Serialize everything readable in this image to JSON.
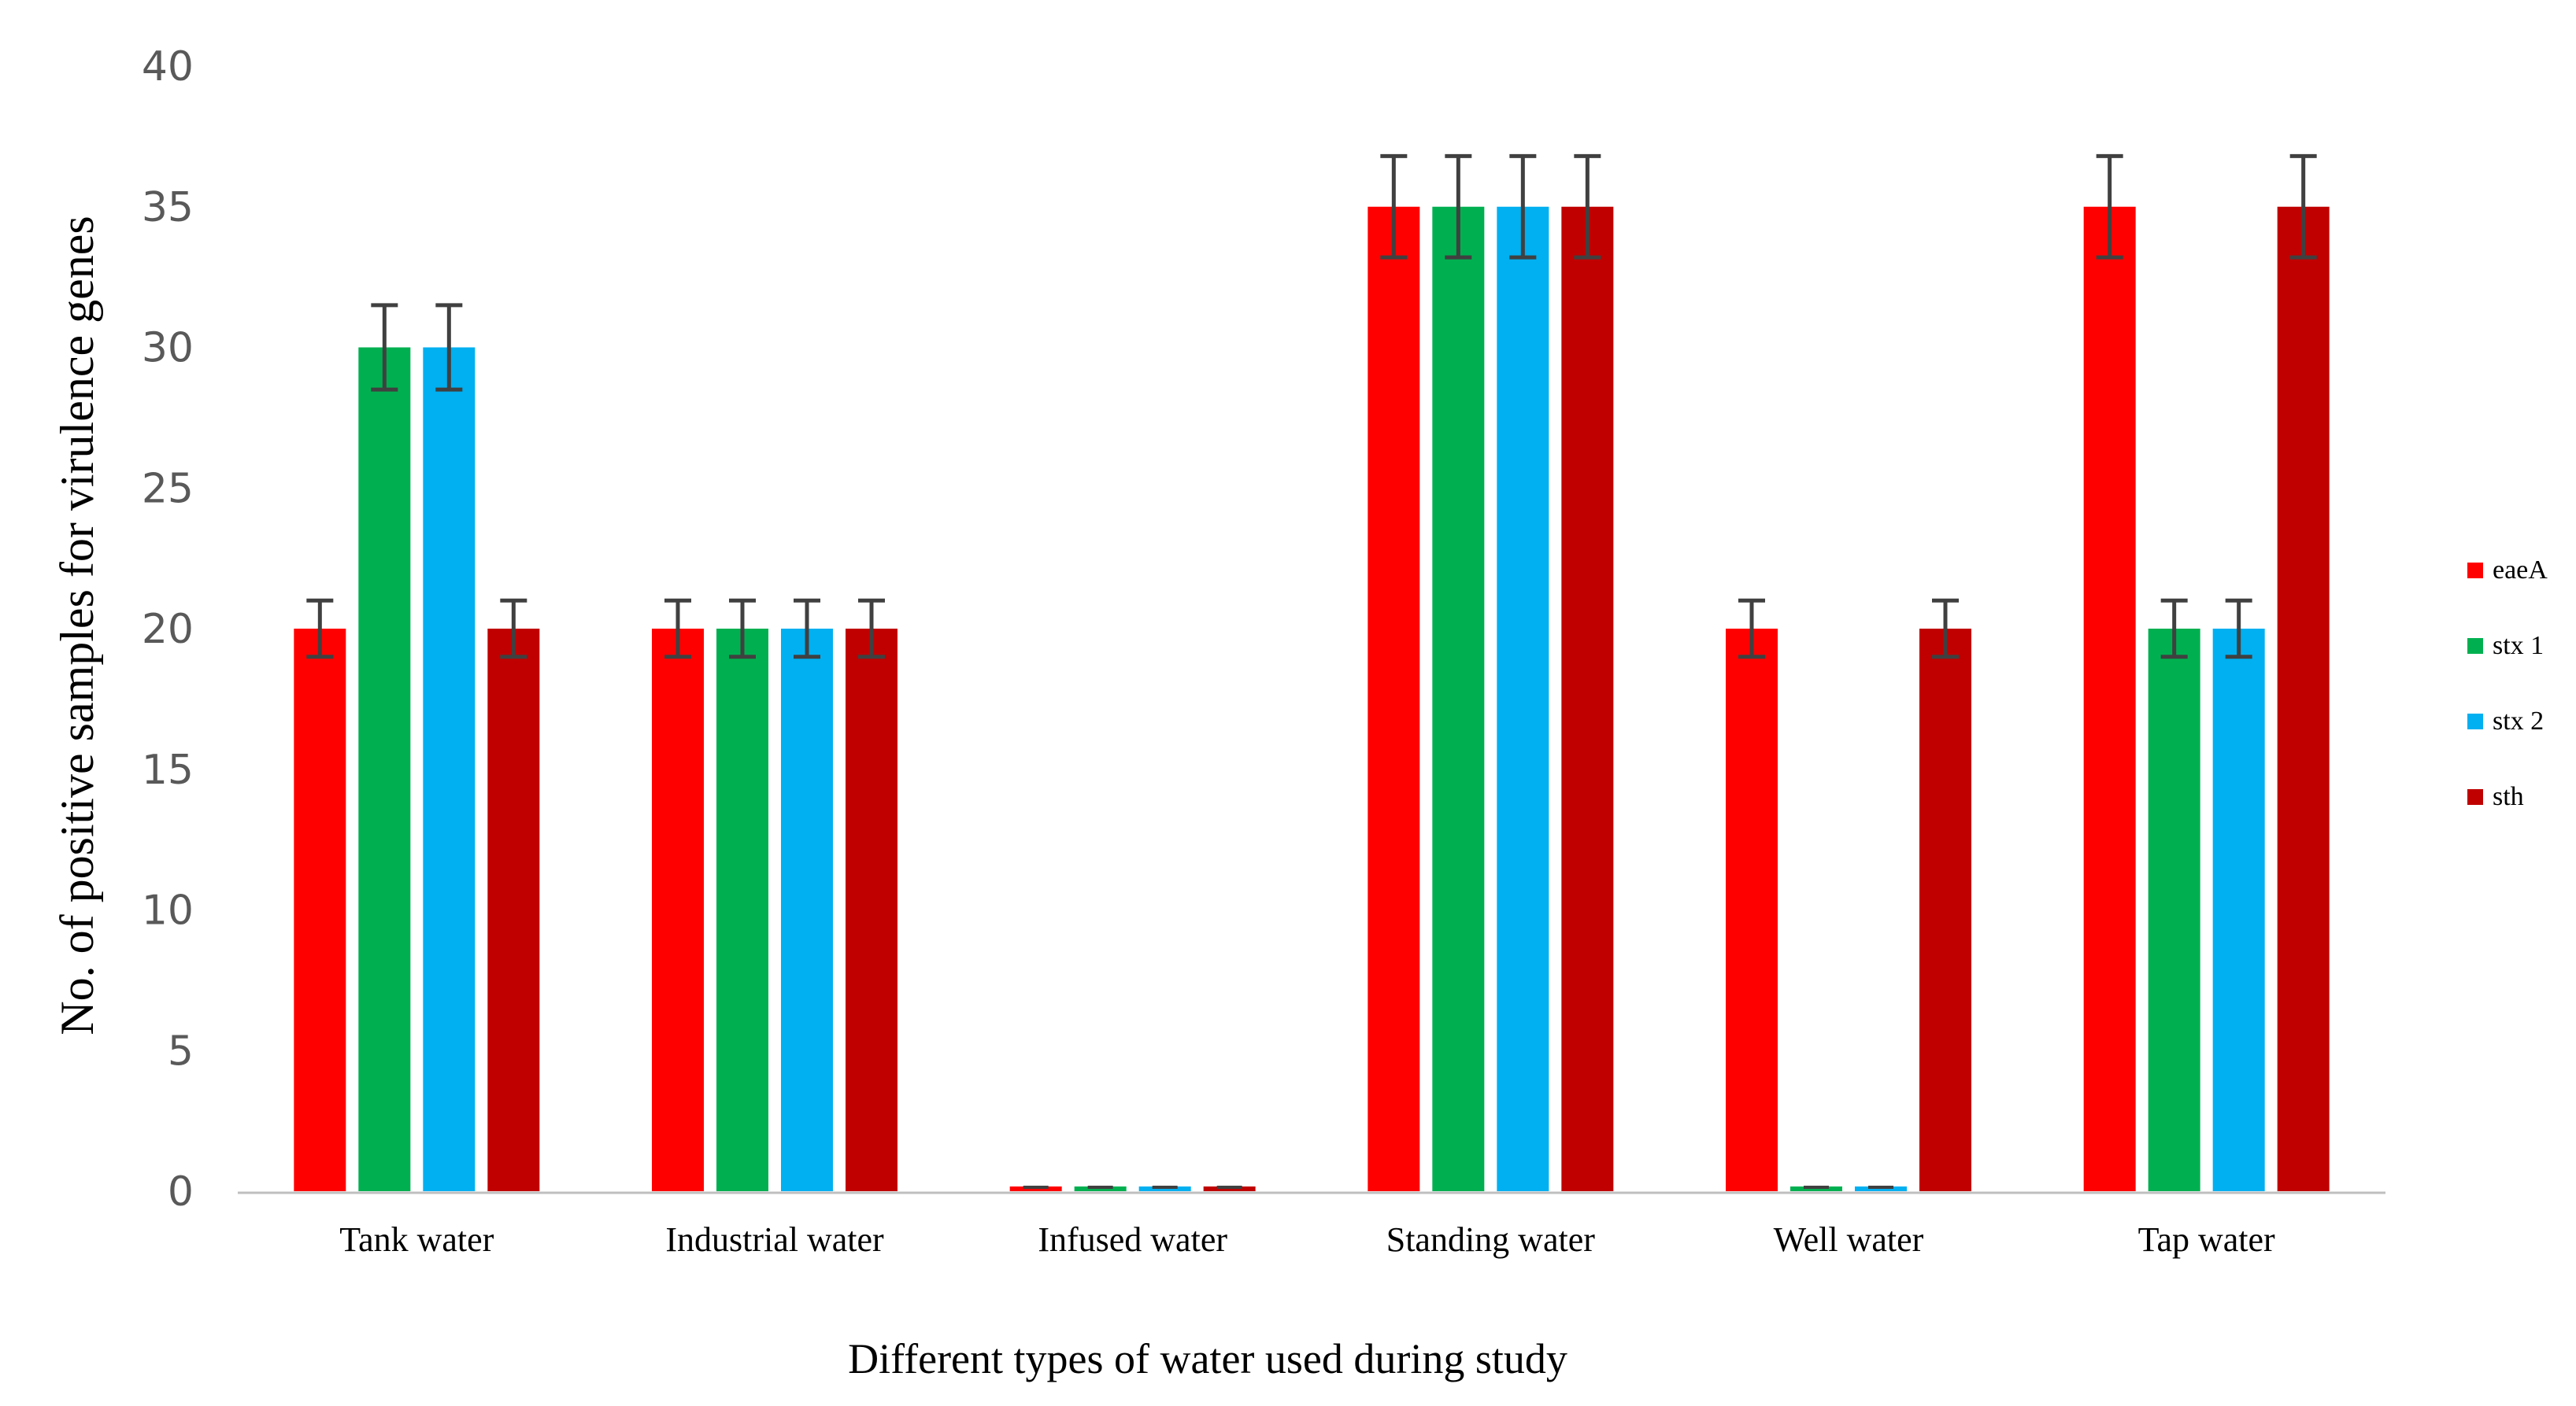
{
  "chart_data": {
    "type": "bar",
    "title": "",
    "xlabel": "Different types of water used during study",
    "ylabel": "No. of positive samples for virulence genes",
    "ylim": [
      0,
      40
    ],
    "yticks": [
      0,
      5,
      10,
      15,
      20,
      25,
      30,
      35,
      40
    ],
    "categories": [
      "Tank water",
      "Industrial water",
      "Infused water",
      "Standing water",
      "Well water",
      "Tap water"
    ],
    "series": [
      {
        "name": "eaeA",
        "color": "#FF0000",
        "values": [
          20,
          20,
          0,
          35,
          20,
          35
        ],
        "errors": [
          1,
          1,
          0,
          1.8,
          1,
          1.8
        ]
      },
      {
        "name": "stx 1",
        "color": "#00B050",
        "values": [
          30,
          20,
          0,
          35,
          0,
          20
        ],
        "errors": [
          1.5,
          1,
          0,
          1.8,
          0,
          1
        ]
      },
      {
        "name": "stx 2",
        "color": "#00B0F0",
        "values": [
          30,
          20,
          0,
          35,
          0,
          20
        ],
        "errors": [
          1.5,
          1,
          0,
          1.8,
          0,
          1
        ]
      },
      {
        "name": "sth",
        "color": "#C00000",
        "values": [
          20,
          20,
          0,
          35,
          20,
          35
        ],
        "errors": [
          1,
          1,
          0,
          1.8,
          1,
          1.8
        ]
      }
    ],
    "grid": false,
    "legend_position": "right",
    "error_bar_color": "#404040",
    "axis_color": "#BFBFBF"
  }
}
